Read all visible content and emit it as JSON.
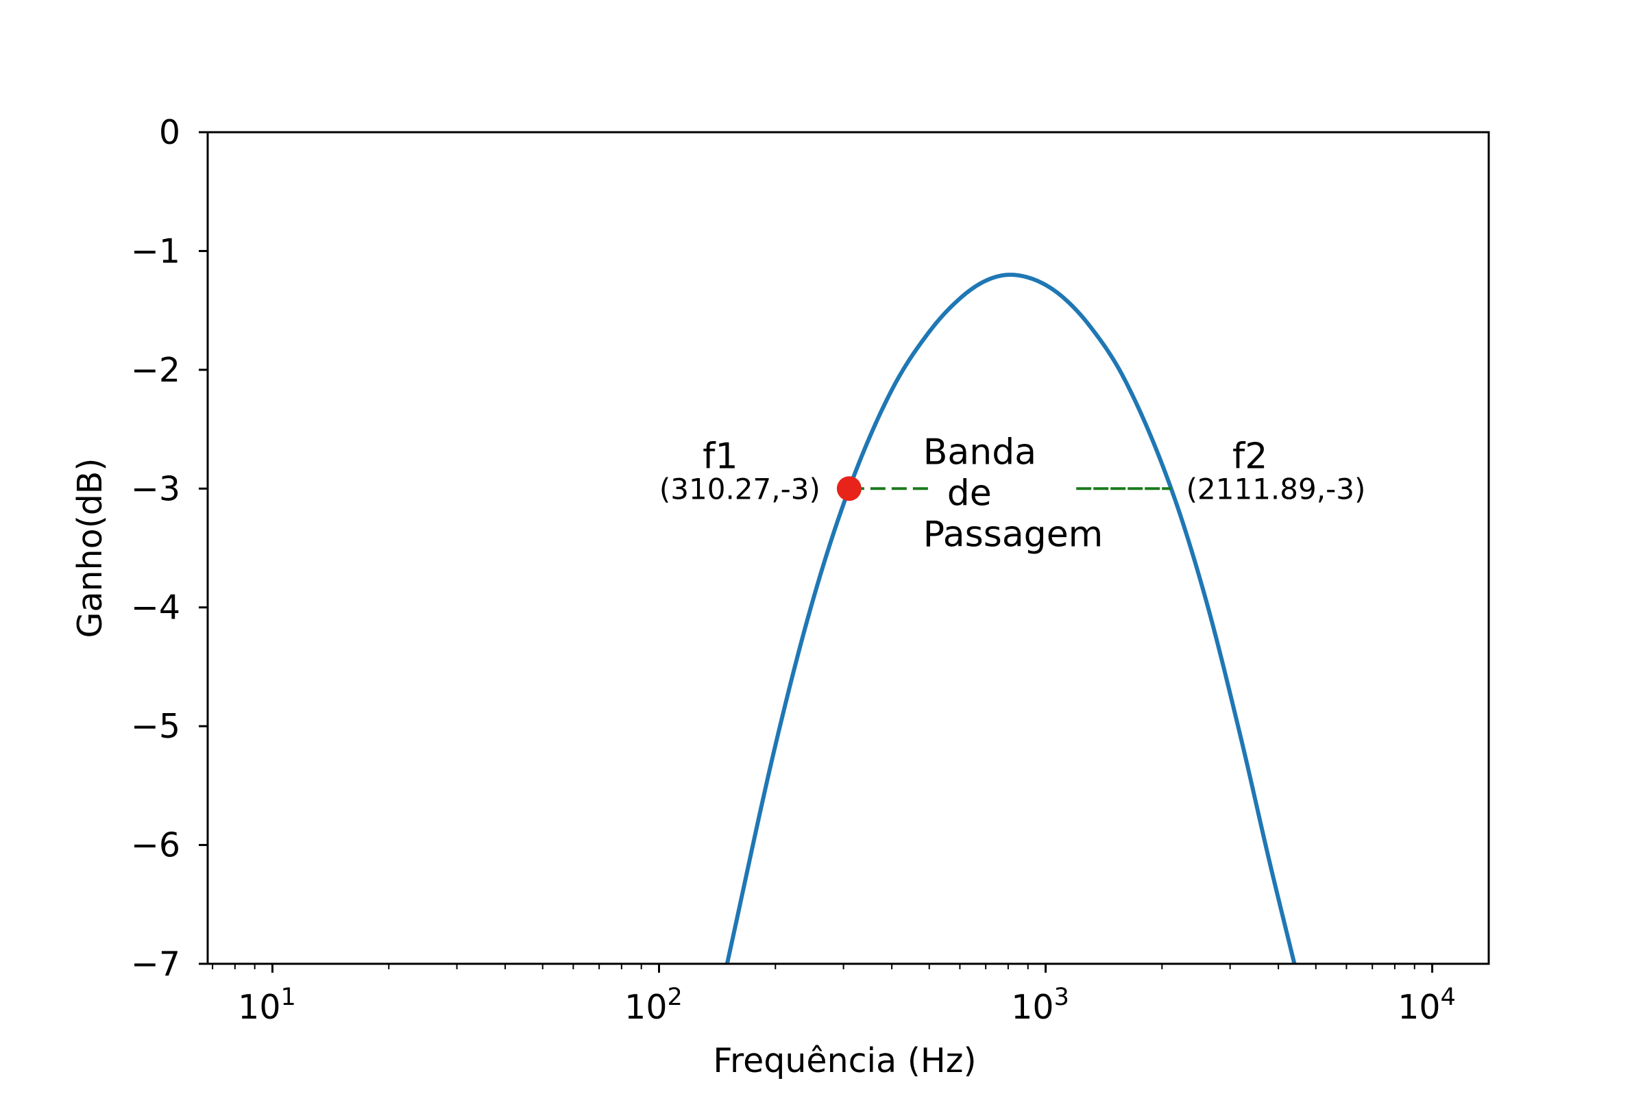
{
  "chart_data": {
    "type": "line",
    "title": "",
    "xlabel": "Frequência (Hz)",
    "ylabel": "Ganho(dB)",
    "xscale": "log",
    "xlim": [
      6.8,
      14000
    ],
    "ylim": [
      -7,
      0
    ],
    "grid": false,
    "x_ticks": [
      {
        "value": 10,
        "base": "10",
        "exp": "1"
      },
      {
        "value": 100,
        "base": "10",
        "exp": "2"
      },
      {
        "value": 1000,
        "base": "10",
        "exp": "3"
      },
      {
        "value": 10000,
        "base": "10",
        "exp": "4"
      }
    ],
    "y_ticks": [
      {
        "value": 0,
        "label": "0"
      },
      {
        "value": -1,
        "label": "−1"
      },
      {
        "value": -2,
        "label": "−2"
      },
      {
        "value": -3,
        "label": "−3"
      },
      {
        "value": -4,
        "label": "−4"
      },
      {
        "value": -5,
        "label": "−5"
      },
      {
        "value": -6,
        "label": "−6"
      },
      {
        "value": -7,
        "label": "−7"
      }
    ],
    "series": [
      {
        "color": "#1f77b4",
        "peak_frequency": 810,
        "peak_gain": -1.2,
        "x": [
          150,
          200,
          250,
          310.27,
          400,
          500,
          600,
          700,
          810,
          950,
          1100,
          1300,
          1600,
          2111.89,
          2600,
          3200,
          3800,
          4400
        ],
        "y": [
          -7.0,
          -5.16,
          -3.94,
          -3.0,
          -2.17,
          -1.68,
          -1.4,
          -1.25,
          -1.2,
          -1.25,
          -1.38,
          -1.63,
          -2.08,
          -3.0,
          -3.94,
          -5.1,
          -6.15,
          -7.0
        ]
      }
    ],
    "markers": [
      {
        "name": "f1",
        "x": 310.27,
        "y": -3,
        "color": "#e8231a",
        "label": "f1",
        "coord_label": "(310.27,-3)"
      },
      {
        "name": "f2",
        "x": 2111.89,
        "y": -3,
        "color": "#e8231a",
        "label": "f2",
        "coord_label": "(2111.89,-3)"
      }
    ],
    "band": {
      "y": -3,
      "color": "#1a7a1a",
      "left_segment": [
        310.27,
        500
      ],
      "right_segment": [
        1200,
        2111.89
      ],
      "label_lines": [
        "Banda",
        "de",
        "Passagem"
      ]
    }
  }
}
